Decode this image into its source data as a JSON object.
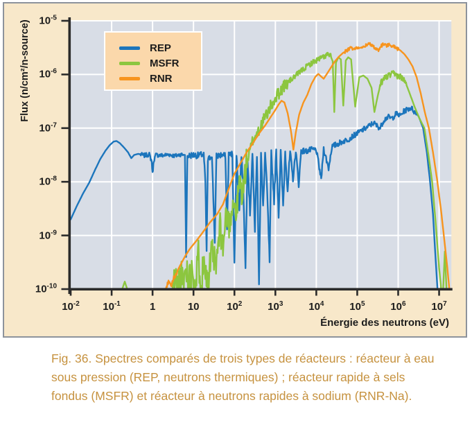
{
  "figure": {
    "caption": "Fig. 36. Spectres comparés de trois types de réacteurs : réacteur à eau sous pression (REP, neutrons thermiques) ; réacteur rapide à sels fondus (MSFR) et réacteur à neutrons rapides à sodium (RNR-Na)."
  },
  "colors": {
    "panel_background": "#f8e8ca",
    "panel_border": "#8d939c",
    "plot_background": "#d8dde6",
    "grid": "#ffffff",
    "axis": "#2b2b2b",
    "legend_background": "#fbd8ab",
    "caption_text": "#c6923f",
    "rep_blue": "#1c75bc",
    "msfr_green": "#8cc63f",
    "rnr_orange": "#f7941e"
  },
  "chart_data": {
    "type": "line",
    "title": "",
    "xlabel": "Énergie des neutrons (eV)",
    "ylabel": "Flux (n/cm²/n-source)",
    "x_scale": "log",
    "y_scale": "log",
    "xlim_log10": [
      -2,
      7.3
    ],
    "ylim_log10": [
      -10,
      -5
    ],
    "grid": "white lines at every decade",
    "x_ticks": [
      {
        "logv": -2,
        "base": "10",
        "exp": "-2"
      },
      {
        "logv": -1,
        "base": "10",
        "exp": "-1"
      },
      {
        "logv": 0,
        "base": "1",
        "exp": ""
      },
      {
        "logv": 1,
        "base": "10",
        "exp": ""
      },
      {
        "logv": 2,
        "base": "10",
        "exp": "2"
      },
      {
        "logv": 3,
        "base": "10",
        "exp": "3"
      },
      {
        "logv": 4,
        "base": "10",
        "exp": "4"
      },
      {
        "logv": 5,
        "base": "10",
        "exp": "5"
      },
      {
        "logv": 6,
        "base": "10",
        "exp": "6"
      },
      {
        "logv": 7,
        "base": "10",
        "exp": "7"
      }
    ],
    "y_ticks": [
      {
        "logv": -5,
        "base": "10",
        "exp": "-5"
      },
      {
        "logv": -6,
        "base": "10",
        "exp": "-6"
      },
      {
        "logv": -7,
        "base": "10",
        "exp": "-7"
      },
      {
        "logv": -8,
        "base": "10",
        "exp": "-8"
      },
      {
        "logv": -9,
        "base": "10",
        "exp": "-9"
      },
      {
        "logv": -10,
        "base": "10",
        "exp": "-10"
      }
    ],
    "legend": {
      "position": "top-left",
      "items": [
        {
          "label": "REP",
          "color": "#1c75bc"
        },
        {
          "label": "MSFR",
          "color": "#8cc63f"
        },
        {
          "label": "RNR",
          "color": "#f7941e"
        }
      ]
    },
    "series": [
      {
        "name": "REP",
        "color": "#1c75bc",
        "seed": 7,
        "points_log10E_log10Flux": [
          [
            -2.0,
            -8.7
          ],
          [
            -1.85,
            -8.45
          ],
          [
            -1.7,
            -8.22
          ],
          [
            -1.55,
            -8.02
          ],
          [
            -1.4,
            -7.77
          ],
          [
            -1.28,
            -7.58
          ],
          [
            -1.15,
            -7.42
          ],
          [
            -1.05,
            -7.32
          ],
          [
            -0.95,
            -7.25
          ],
          [
            -0.88,
            -7.24
          ],
          [
            -0.8,
            -7.28
          ],
          [
            -0.7,
            -7.36
          ],
          [
            -0.6,
            -7.45
          ],
          [
            -0.52,
            -7.56
          ],
          [
            -0.45,
            -7.5
          ],
          [
            -0.35,
            -7.48
          ],
          [
            -0.2,
            -7.51
          ],
          [
            -0.08,
            -7.49
          ],
          [
            -0.02,
            -7.62
          ],
          [
            0.0,
            -7.85
          ],
          [
            0.03,
            -7.6
          ],
          [
            0.08,
            -7.5
          ],
          [
            0.25,
            -7.51
          ],
          [
            0.4,
            -7.49
          ],
          [
            0.55,
            -7.52
          ],
          [
            0.68,
            -7.49
          ],
          [
            0.79,
            -7.5
          ],
          [
            0.82,
            -9.4
          ],
          [
            0.85,
            -7.52
          ],
          [
            1.0,
            -7.5
          ],
          [
            1.12,
            -7.51
          ],
          [
            1.25,
            -7.49
          ],
          [
            1.29,
            -8.0
          ],
          [
            1.32,
            -9.3
          ],
          [
            1.35,
            -7.6
          ],
          [
            1.45,
            -7.5
          ],
          [
            1.52,
            -9.1
          ],
          [
            1.56,
            -7.52
          ],
          [
            1.68,
            -7.5
          ],
          [
            1.78,
            -7.52
          ],
          [
            1.82,
            -8.9
          ],
          [
            1.86,
            -7.5
          ],
          [
            1.95,
            -7.48
          ],
          [
            2.0,
            -9.55
          ],
          [
            2.05,
            -7.5
          ],
          [
            2.12,
            -8.55
          ],
          [
            2.17,
            -7.48
          ],
          [
            2.22,
            -8.2
          ],
          [
            2.27,
            -9.6
          ],
          [
            2.32,
            -7.5
          ],
          [
            2.38,
            -8.6
          ],
          [
            2.44,
            -7.48
          ],
          [
            2.5,
            -8.9
          ],
          [
            2.55,
            -7.47
          ],
          [
            2.6,
            -9.85
          ],
          [
            2.65,
            -7.48
          ],
          [
            2.7,
            -8.5
          ],
          [
            2.75,
            -7.46
          ],
          [
            2.8,
            -8.2
          ],
          [
            2.86,
            -9.5
          ],
          [
            2.9,
            -7.47
          ],
          [
            2.97,
            -8.35
          ],
          [
            3.02,
            -7.45
          ],
          [
            3.08,
            -8.6
          ],
          [
            3.13,
            -7.45
          ],
          [
            3.19,
            -8.45
          ],
          [
            3.24,
            -7.44
          ],
          [
            3.3,
            -8.15
          ],
          [
            3.36,
            -7.44
          ],
          [
            3.43,
            -7.95
          ],
          [
            3.5,
            -7.42
          ],
          [
            3.57,
            -8.05
          ],
          [
            3.63,
            -7.42
          ],
          [
            3.75,
            -7.43
          ],
          [
            3.9,
            -7.4
          ],
          [
            4.0,
            -7.41
          ],
          [
            4.12,
            -7.95
          ],
          [
            4.18,
            -7.38
          ],
          [
            4.3,
            -7.75
          ],
          [
            4.38,
            -7.35
          ],
          [
            4.5,
            -7.3
          ],
          [
            4.65,
            -7.25
          ],
          [
            4.8,
            -7.2
          ],
          [
            4.95,
            -7.12
          ],
          [
            5.1,
            -7.05
          ],
          [
            5.25,
            -6.98
          ],
          [
            5.4,
            -6.9
          ],
          [
            5.47,
            -6.95
          ],
          [
            5.56,
            -7.0
          ],
          [
            5.65,
            -6.85
          ],
          [
            5.75,
            -6.79
          ],
          [
            5.85,
            -6.82
          ],
          [
            5.95,
            -6.73
          ],
          [
            6.05,
            -6.77
          ],
          [
            6.15,
            -6.68
          ],
          [
            6.25,
            -6.64
          ],
          [
            6.32,
            -6.62
          ],
          [
            6.4,
            -6.7
          ],
          [
            6.5,
            -6.78
          ],
          [
            6.61,
            -7.0
          ],
          [
            6.7,
            -7.45
          ],
          [
            6.78,
            -8.0
          ],
          [
            6.85,
            -8.6
          ],
          [
            6.92,
            -9.5
          ],
          [
            6.96,
            -10.0
          ]
        ],
        "noise_segments_from_to_amp": [
          [
            -0.3,
            0.75,
            0.04
          ],
          [
            0.86,
            1.95,
            0.06
          ],
          [
            1.95,
            3.35,
            0.08
          ],
          [
            3.35,
            4.6,
            0.055
          ],
          [
            4.6,
            6.45,
            0.05
          ]
        ]
      },
      {
        "name": "MSFR",
        "color": "#8cc63f",
        "seed": 11,
        "points_log10E_log10Flux": [
          [
            -0.74,
            -10.0
          ],
          [
            -0.68,
            -9.86
          ],
          [
            -0.62,
            -10.0
          ],
          [
            0.48,
            -10.0
          ],
          [
            0.56,
            -9.82
          ],
          [
            0.62,
            -10.0
          ],
          [
            0.68,
            -9.75
          ],
          [
            0.74,
            -9.95
          ],
          [
            0.82,
            -9.6
          ],
          [
            0.9,
            -9.85
          ],
          [
            0.98,
            -9.55
          ],
          [
            1.05,
            -10.0
          ],
          [
            1.12,
            -9.4
          ],
          [
            1.2,
            -9.85
          ],
          [
            1.28,
            -9.35
          ],
          [
            1.35,
            -10.0
          ],
          [
            1.45,
            -9.3
          ],
          [
            1.55,
            -9.6
          ],
          [
            1.65,
            -8.85
          ],
          [
            1.72,
            -9.25
          ],
          [
            1.8,
            -8.6
          ],
          [
            1.88,
            -8.8
          ],
          [
            1.96,
            -8.35
          ],
          [
            2.05,
            -8.6
          ],
          [
            2.12,
            -8.0
          ],
          [
            2.2,
            -8.25
          ],
          [
            2.28,
            -7.7
          ],
          [
            2.35,
            -7.52
          ],
          [
            2.45,
            -7.22
          ],
          [
            2.55,
            -7.1
          ],
          [
            2.68,
            -6.9
          ],
          [
            2.8,
            -6.72
          ],
          [
            2.92,
            -6.55
          ],
          [
            3.05,
            -6.38
          ],
          [
            3.2,
            -6.22
          ],
          [
            3.35,
            -6.12
          ],
          [
            3.5,
            -6.02
          ],
          [
            3.65,
            -5.92
          ],
          [
            3.8,
            -5.83
          ],
          [
            3.95,
            -5.76
          ],
          [
            4.1,
            -5.7
          ],
          [
            4.2,
            -5.66
          ],
          [
            4.28,
            -5.63
          ],
          [
            4.35,
            -5.66
          ],
          [
            4.4,
            -5.75
          ],
          [
            4.44,
            -6.7
          ],
          [
            4.48,
            -5.78
          ],
          [
            4.54,
            -5.68
          ],
          [
            4.6,
            -5.72
          ],
          [
            4.66,
            -6.58
          ],
          [
            4.72,
            -5.74
          ],
          [
            4.78,
            -5.68
          ],
          [
            4.85,
            -5.72
          ],
          [
            4.95,
            -6.6
          ],
          [
            5.05,
            -6.05
          ],
          [
            5.15,
            -6.02
          ],
          [
            5.25,
            -6.08
          ],
          [
            5.35,
            -6.25
          ],
          [
            5.42,
            -6.7
          ],
          [
            5.5,
            -6.4
          ],
          [
            5.58,
            -6.15
          ],
          [
            5.68,
            -6.06
          ],
          [
            5.78,
            -6.02
          ],
          [
            5.88,
            -5.99
          ],
          [
            5.98,
            -6.02
          ],
          [
            6.08,
            -6.05
          ],
          [
            6.18,
            -6.15
          ],
          [
            6.28,
            -6.35
          ],
          [
            6.4,
            -6.6
          ],
          [
            6.52,
            -6.82
          ],
          [
            6.64,
            -7.0
          ],
          [
            6.74,
            -7.5
          ],
          [
            6.83,
            -8.0
          ],
          [
            6.92,
            -8.8
          ],
          [
            7.0,
            -9.6
          ],
          [
            7.05,
            -10.0
          ],
          [
            7.1,
            -10.0
          ],
          [
            7.14,
            -9.3
          ],
          [
            7.18,
            -10.0
          ]
        ],
        "noise_segments_from_to_amp": [
          [
            0.5,
            1.4,
            0.38
          ],
          [
            1.4,
            2.3,
            0.28
          ],
          [
            2.3,
            3.3,
            0.12
          ],
          [
            3.3,
            4.35,
            0.05
          ],
          [
            5.55,
            6.2,
            0.06
          ]
        ]
      },
      {
        "name": "RNR",
        "color": "#f7941e",
        "seed": 5,
        "points_log10E_log10Flux": [
          [
            0.32,
            -10.0
          ],
          [
            0.4,
            -9.85
          ],
          [
            0.46,
            -9.92
          ],
          [
            0.52,
            -9.78
          ],
          [
            0.58,
            -9.7
          ],
          [
            0.68,
            -9.55
          ],
          [
            0.8,
            -9.38
          ],
          [
            0.92,
            -9.24
          ],
          [
            1.05,
            -9.12
          ],
          [
            1.2,
            -8.97
          ],
          [
            1.4,
            -8.76
          ],
          [
            1.58,
            -8.6
          ],
          [
            1.72,
            -8.42
          ],
          [
            1.85,
            -8.15
          ],
          [
            2.0,
            -7.85
          ],
          [
            2.15,
            -7.65
          ],
          [
            2.3,
            -7.45
          ],
          [
            2.45,
            -7.28
          ],
          [
            2.6,
            -7.1
          ],
          [
            2.75,
            -6.95
          ],
          [
            2.88,
            -6.8
          ],
          [
            3.0,
            -6.66
          ],
          [
            3.08,
            -6.56
          ],
          [
            3.15,
            -6.49
          ],
          [
            3.22,
            -6.52
          ],
          [
            3.3,
            -6.72
          ],
          [
            3.38,
            -7.05
          ],
          [
            3.44,
            -7.4
          ],
          [
            3.5,
            -7.08
          ],
          [
            3.58,
            -6.75
          ],
          [
            3.68,
            -6.53
          ],
          [
            3.78,
            -6.38
          ],
          [
            3.88,
            -6.18
          ],
          [
            3.98,
            -6.04
          ],
          [
            4.05,
            -5.99
          ],
          [
            4.12,
            -6.04
          ],
          [
            4.18,
            -6.08
          ],
          [
            4.25,
            -6.0
          ],
          [
            4.35,
            -5.88
          ],
          [
            4.45,
            -5.76
          ],
          [
            4.55,
            -5.67
          ],
          [
            4.65,
            -5.6
          ],
          [
            4.75,
            -5.55
          ],
          [
            4.85,
            -5.5
          ],
          [
            4.92,
            -5.54
          ],
          [
            5.0,
            -5.49
          ],
          [
            5.1,
            -5.52
          ],
          [
            5.2,
            -5.46
          ],
          [
            5.3,
            -5.43
          ],
          [
            5.38,
            -5.47
          ],
          [
            5.45,
            -5.52
          ],
          [
            5.52,
            -5.56
          ],
          [
            5.58,
            -5.47
          ],
          [
            5.65,
            -5.43
          ],
          [
            5.72,
            -5.46
          ],
          [
            5.8,
            -5.44
          ],
          [
            5.88,
            -5.48
          ],
          [
            5.96,
            -5.51
          ],
          [
            6.05,
            -5.55
          ],
          [
            6.15,
            -5.62
          ],
          [
            6.25,
            -5.72
          ],
          [
            6.35,
            -5.85
          ],
          [
            6.45,
            -6.05
          ],
          [
            6.55,
            -6.35
          ],
          [
            6.65,
            -6.7
          ],
          [
            6.75,
            -7.0
          ],
          [
            6.85,
            -7.45
          ],
          [
            6.95,
            -7.95
          ],
          [
            7.05,
            -8.55
          ],
          [
            7.13,
            -9.1
          ],
          [
            7.2,
            -9.6
          ],
          [
            7.25,
            -10.0
          ]
        ],
        "noise_segments_from_to_amp": [
          [
            0.34,
            0.6,
            0.05
          ],
          [
            4.7,
            6.0,
            0.03
          ]
        ]
      }
    ]
  }
}
